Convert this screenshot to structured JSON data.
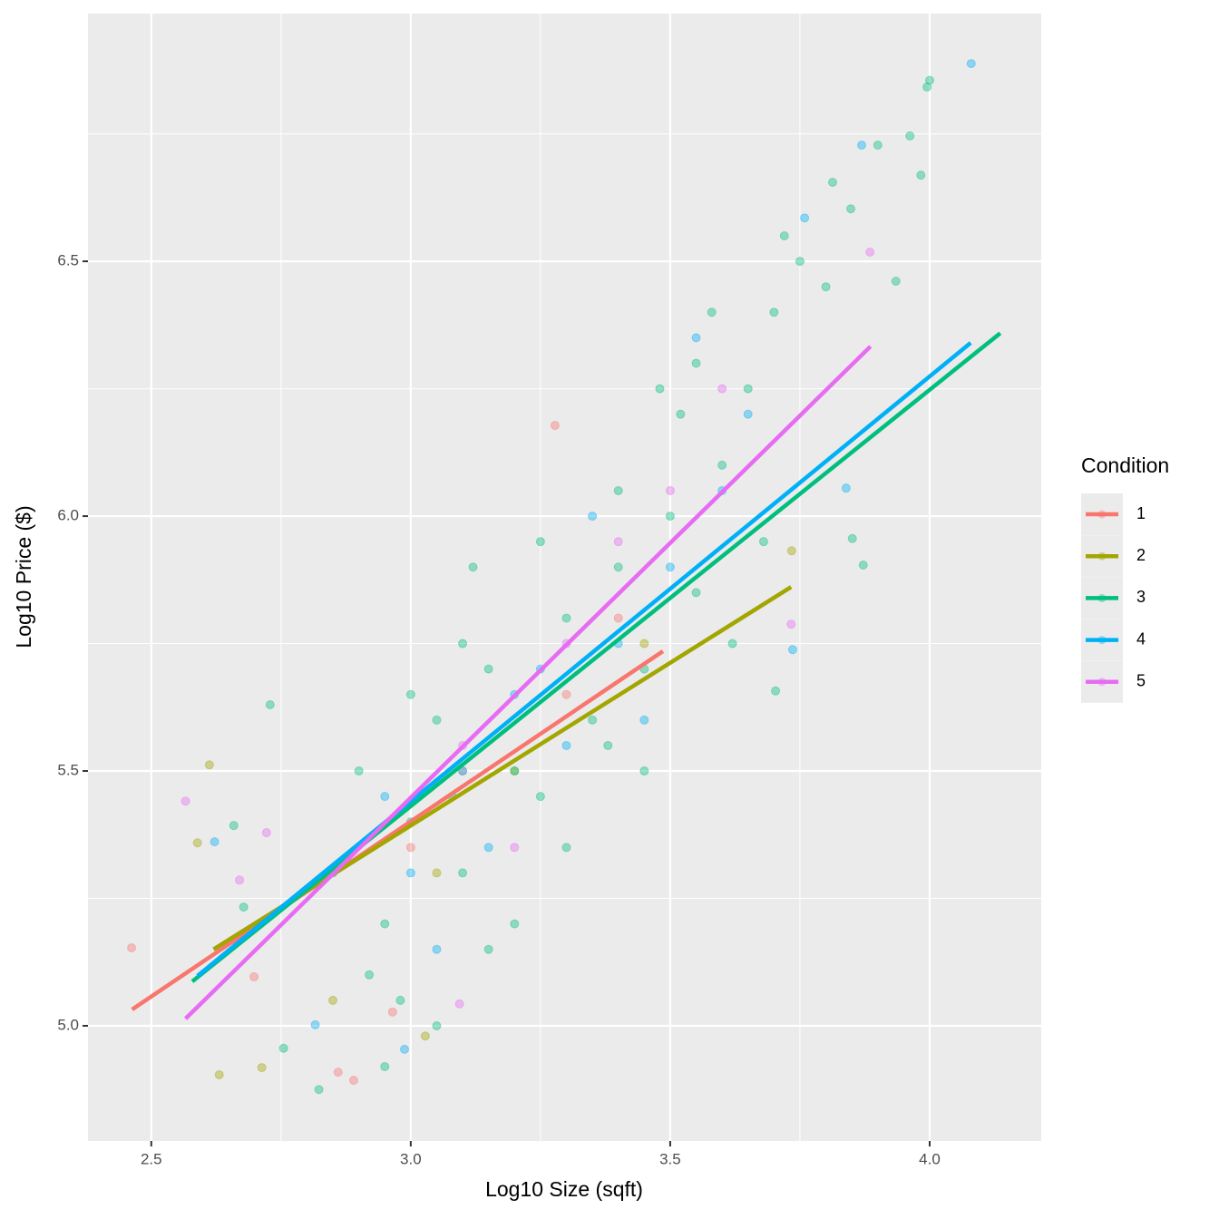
{
  "chart_data": {
    "type": "scatter",
    "x_label": "Log10 Size (sqft)",
    "y_label": "Log10 Price ($)",
    "legend_title": "Condition",
    "legend_position": "right",
    "grid": true,
    "xlim": [
      2.378,
      4.215
    ],
    "ylim": [
      4.774,
      6.986
    ],
    "xticks": [
      2.5,
      {
        "value": 3,
        "label": "3.0"
      },
      3.5,
      {
        "value": 4,
        "label": "4.0"
      }
    ],
    "yticks": [
      {
        "value": 5,
        "label": "5.0"
      },
      5.5,
      {
        "value": 6,
        "label": "6.0"
      },
      6.5
    ],
    "x_minor_ticks": [
      2.75,
      3.25,
      3.75
    ],
    "y_minor_ticks": [
      5.25,
      5.75,
      6.25,
      6.75
    ],
    "series": [
      {
        "name": "1",
        "color": "#F8766D",
        "x": [
          2.462,
          2.698,
          2.86,
          2.89,
          2.965,
          3.278,
          3.1,
          3.3,
          3.0,
          3.4
        ],
        "y": [
          5.153,
          5.096,
          4.909,
          4.893,
          5.027,
          6.178,
          5.5,
          5.65,
          5.35,
          5.8
        ],
        "fit_x": [
          2.463,
          3.486
        ],
        "fit_y": [
          5.032,
          5.735
        ]
      },
      {
        "name": "2",
        "color": "#A3A500",
        "x": [
          2.631,
          2.713,
          2.612,
          2.589,
          3.028,
          3.734,
          3.2,
          3.05,
          3.45,
          2.85
        ],
        "y": [
          4.904,
          4.918,
          5.512,
          5.359,
          4.98,
          5.932,
          5.5,
          5.3,
          5.75,
          5.05
        ],
        "fit_x": [
          2.62,
          3.733
        ],
        "fit_y": [
          5.15,
          5.861
        ]
      },
      {
        "name": "3",
        "color": "#00BF7D",
        "x": [
          3.995,
          4.0,
          3.962,
          3.9,
          3.983,
          3.813,
          3.848,
          3.935,
          3.851,
          3.872,
          3.703,
          2.755,
          2.823,
          2.729,
          2.659,
          2.678,
          3.05,
          2.95,
          3.0,
          3.05,
          3.1,
          3.15,
          3.2,
          3.25,
          3.3,
          3.35,
          3.4,
          3.45,
          3.5,
          3.55,
          3.6,
          3.65,
          3.7,
          3.75,
          3.62,
          3.52,
          3.4,
          3.3,
          3.2,
          3.1,
          2.95,
          2.9,
          2.85,
          2.92,
          3.0,
          3.15,
          3.25,
          3.45,
          3.55,
          3.68,
          3.8,
          3.72,
          3.58,
          3.48,
          3.38,
          3.08,
          2.98,
          3.12
        ],
        "y": [
          6.842,
          6.855,
          6.746,
          6.728,
          6.669,
          6.655,
          6.603,
          6.461,
          5.956,
          5.904,
          5.657,
          4.956,
          4.875,
          5.63,
          5.393,
          5.233,
          5.0,
          4.92,
          5.4,
          5.6,
          5.3,
          5.7,
          5.5,
          5.45,
          5.8,
          5.6,
          5.9,
          5.7,
          6.0,
          5.85,
          6.1,
          6.25,
          6.4,
          6.5,
          5.75,
          6.2,
          6.05,
          5.35,
          5.2,
          5.75,
          5.2,
          5.5,
          5.3,
          5.1,
          5.65,
          5.15,
          5.95,
          5.5,
          6.3,
          5.95,
          6.45,
          6.55,
          6.4,
          6.25,
          5.55,
          5.45,
          5.05,
          5.9
        ],
        "fit_x": [
          2.579,
          4.136
        ],
        "fit_y": [
          5.087,
          6.359
        ]
      },
      {
        "name": "4",
        "color": "#00B0F6",
        "x": [
          4.08,
          3.869,
          3.759,
          3.839,
          3.736,
          2.622,
          2.816,
          2.988,
          3.0,
          3.1,
          3.2,
          3.3,
          3.4,
          3.5,
          3.6,
          3.05,
          3.15,
          3.35,
          3.25,
          3.55,
          2.95,
          3.45,
          3.65
        ],
        "y": [
          6.888,
          6.728,
          6.585,
          6.055,
          5.738,
          5.361,
          5.002,
          4.954,
          5.3,
          5.5,
          5.65,
          5.55,
          5.75,
          5.9,
          6.05,
          5.15,
          5.35,
          6.0,
          5.7,
          6.35,
          5.45,
          5.6,
          6.2
        ],
        "fit_x": [
          2.589,
          4.079
        ],
        "fit_y": [
          5.098,
          6.34
        ]
      },
      {
        "name": "5",
        "color": "#E76BF3",
        "x": [
          3.885,
          2.566,
          2.67,
          2.722,
          3.094,
          3.733,
          3.1,
          3.3,
          3.5,
          3.2,
          3.6,
          3.4
        ],
        "y": [
          6.518,
          5.441,
          5.286,
          5.379,
          5.043,
          5.788,
          5.55,
          5.75,
          6.05,
          5.35,
          6.25,
          5.95
        ],
        "fit_x": [
          2.566,
          3.886
        ],
        "fit_y": [
          5.014,
          6.333
        ]
      }
    ]
  }
}
